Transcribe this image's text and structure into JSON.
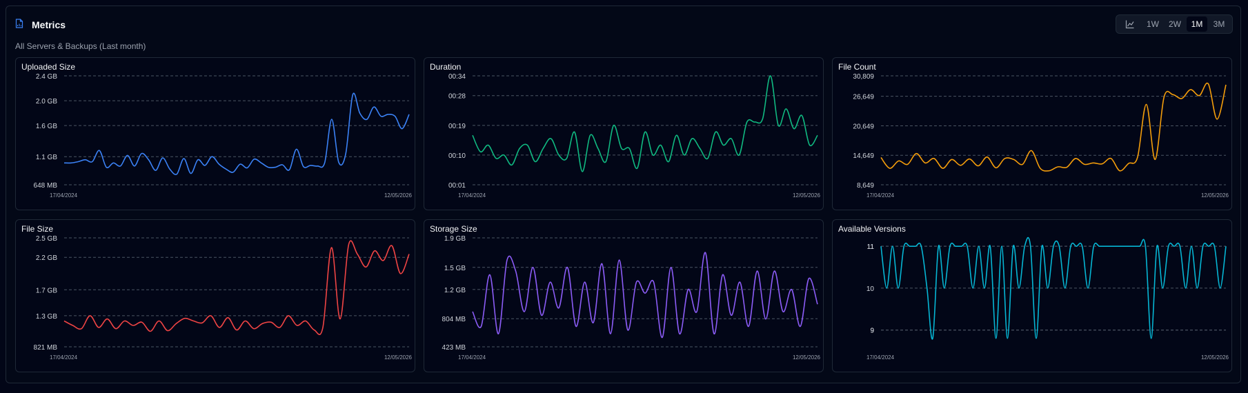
{
  "header": {
    "title": "Metrics",
    "subtitle": "All Servers & Backups (Last month)",
    "icon": "file-chart-icon"
  },
  "range_buttons": [
    {
      "label": "1W",
      "active": false
    },
    {
      "label": "2W",
      "active": false
    },
    {
      "label": "1M",
      "active": true
    },
    {
      "label": "3M",
      "active": false
    }
  ],
  "chart_data": [
    {
      "type": "line",
      "title": "Uploaded Size",
      "color": "#3b82f6",
      "yticks": [
        "2.4 GB",
        "2.0 GB",
        "1.6 GB",
        "1.1 GB",
        "648 MB"
      ],
      "ytick_values": [
        2.4,
        2.0,
        1.6,
        1.1,
        0.648
      ],
      "ylim": [
        0.648,
        2.4
      ],
      "x_labels": [
        "17/04/2024",
        "12/05/2026"
      ],
      "series": [
        {
          "values": [
            1.0,
            1.0,
            1.02,
            1.05,
            1.02,
            1.2,
            0.93,
            1.0,
            0.95,
            1.12,
            0.95,
            1.15,
            1.05,
            0.88,
            1.08,
            0.9,
            0.82,
            1.07,
            0.83,
            1.05,
            0.96,
            1.1,
            0.98,
            0.9,
            0.85,
            0.98,
            0.92,
            1.06,
            1.0,
            0.93,
            0.93,
            0.97,
            0.89,
            1.22,
            0.94,
            0.96,
            0.95,
            1.0,
            1.7,
            1.01,
            1.15,
            2.1,
            1.8,
            1.7,
            1.9,
            1.75,
            1.78,
            1.75,
            1.55,
            1.78
          ]
        }
      ]
    },
    {
      "type": "line",
      "title": "Duration",
      "color": "#10b981",
      "yticks": [
        "00:34",
        "00:28",
        "00:19",
        "00:10",
        "00:01"
      ],
      "ytick_values": [
        34,
        28,
        19,
        10,
        1
      ],
      "ylim": [
        1,
        34
      ],
      "x_labels": [
        "17/04/2024",
        "12/05/2026"
      ],
      "series": [
        {
          "values": [
            16,
            11,
            13,
            9,
            10,
            7,
            12,
            13,
            8,
            12,
            15,
            10,
            9,
            17,
            5,
            16,
            12,
            8,
            19,
            12,
            12,
            6,
            17,
            10,
            13,
            8,
            16,
            10,
            15,
            12,
            9,
            17,
            13,
            15,
            10,
            20,
            20,
            21,
            34,
            19,
            24,
            18,
            22,
            13,
            16
          ]
        }
      ]
    },
    {
      "type": "line",
      "title": "File Count",
      "color": "#f59e0b",
      "yticks": [
        "30,809",
        "26,649",
        "20,649",
        "14,649",
        "8,649"
      ],
      "ytick_values": [
        30809,
        26649,
        20649,
        14649,
        8649
      ],
      "ylim": [
        8649,
        30809
      ],
      "x_labels": [
        "17/04/2024",
        "12/05/2026"
      ],
      "series": [
        {
          "values": [
            14200,
            12000,
            13500,
            12800,
            15000,
            13100,
            14000,
            12000,
            13800,
            12600,
            13900,
            12500,
            14300,
            12100,
            14000,
            13800,
            12800,
            15600,
            12000,
            11500,
            12300,
            12200,
            14000,
            12800,
            13100,
            12900,
            14000,
            11500,
            13000,
            14200,
            25000,
            13800,
            26500,
            27000,
            26200,
            28000,
            26800,
            29200,
            22000,
            29000
          ]
        }
      ]
    },
    {
      "type": "line",
      "title": "File Size",
      "color": "#ef4444",
      "yticks": [
        "2.5 GB",
        "2.2 GB",
        "1.7 GB",
        "1.3 GB",
        "821 MB"
      ],
      "ytick_values": [
        2.5,
        2.2,
        1.7,
        1.3,
        0.821
      ],
      "ylim": [
        0.821,
        2.5
      ],
      "x_labels": [
        "17/04/2024",
        "12/05/2026"
      ],
      "series": [
        {
          "values": [
            1.22,
            1.15,
            1.1,
            1.3,
            1.12,
            1.25,
            1.1,
            1.22,
            1.15,
            1.2,
            1.06,
            1.22,
            1.07,
            1.18,
            1.26,
            1.22,
            1.19,
            1.3,
            1.12,
            1.27,
            1.08,
            1.22,
            1.1,
            1.18,
            1.2,
            1.12,
            1.3,
            1.15,
            1.22,
            1.08,
            1.12,
            2.35,
            1.25,
            2.4,
            2.25,
            2.05,
            2.3,
            2.15,
            2.38,
            1.95,
            2.25
          ]
        }
      ]
    },
    {
      "type": "line",
      "title": "Storage Size",
      "color": "#8b5cf6",
      "yticks": [
        "1.9 GB",
        "1.5 GB",
        "1.2 GB",
        "804 MB",
        "423 MB"
      ],
      "ytick_values": [
        1.9,
        1.5,
        1.2,
        0.804,
        0.423
      ],
      "ylim": [
        0.423,
        1.9
      ],
      "x_labels": [
        "17/04/2024",
        "12/05/2026"
      ],
      "series": [
        {
          "values": [
            0.9,
            0.7,
            1.4,
            0.6,
            1.6,
            1.45,
            0.9,
            1.5,
            0.85,
            1.3,
            0.95,
            1.5,
            0.7,
            1.3,
            0.75,
            1.55,
            0.6,
            1.6,
            0.65,
            1.3,
            1.15,
            1.3,
            0.55,
            1.5,
            0.6,
            1.2,
            0.9,
            1.7,
            0.6,
            1.4,
            0.85,
            1.3,
            0.7,
            1.45,
            0.8,
            1.45,
            0.9,
            1.2,
            0.7,
            1.35,
            1.0
          ]
        }
      ]
    },
    {
      "type": "line",
      "title": "Available Versions",
      "color": "#06b6d4",
      "yticks": [
        "11",
        "11",
        "10",
        "9",
        "9"
      ],
      "ytick_values": [
        11,
        11,
        10,
        9,
        9
      ],
      "ylim": [
        8.6,
        11.2
      ],
      "x_labels": [
        "17/04/2024",
        "12/05/2026"
      ],
      "series": [
        {
          "values": [
            11,
            10,
            11,
            10,
            11,
            11,
            11,
            11,
            10,
            8.8,
            11,
            10,
            11,
            11,
            11,
            11,
            10,
            11,
            10,
            11,
            8.8,
            11,
            8.8,
            11,
            10,
            11,
            11,
            8.8,
            11,
            10,
            11,
            11,
            10,
            11,
            11,
            11,
            10,
            11,
            11,
            11,
            11,
            11,
            11,
            11,
            11,
            11,
            11,
            8.8,
            11,
            10,
            11,
            11,
            11,
            10,
            11,
            10,
            11,
            11,
            11,
            10,
            11
          ]
        }
      ]
    }
  ]
}
